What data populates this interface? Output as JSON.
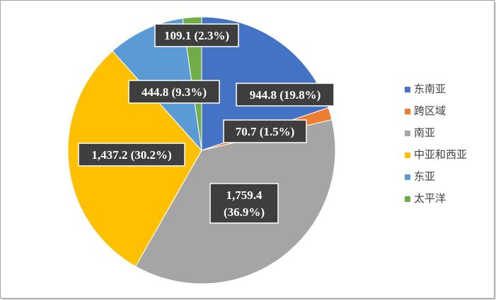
{
  "chart_data": {
    "type": "pie",
    "title": "",
    "categories": [
      "东南亚",
      "跨区域",
      "南亚",
      "中亚和西亚",
      "东亚",
      "太平洋"
    ],
    "values": [
      944.8,
      70.7,
      1759.4,
      1437.2,
      444.8,
      109.1
    ],
    "percents": [
      19.8,
      1.5,
      36.9,
      30.2,
      9.3,
      2.3
    ],
    "labels": [
      [
        "944.8 (19.8%)"
      ],
      [
        "70.7 (1.5%)"
      ],
      [
        "1,759.4",
        "(36.9%)"
      ],
      [
        "1,437.2 (30.2%)"
      ],
      [
        "444.8 (9.3%)"
      ],
      [
        "109.1 (2.3%)"
      ]
    ],
    "colors": [
      "#4472c4",
      "#ed7d31",
      "#a5a5a5",
      "#ffc000",
      "#5b9bd5",
      "#70ad47"
    ],
    "legend_position": "right"
  }
}
